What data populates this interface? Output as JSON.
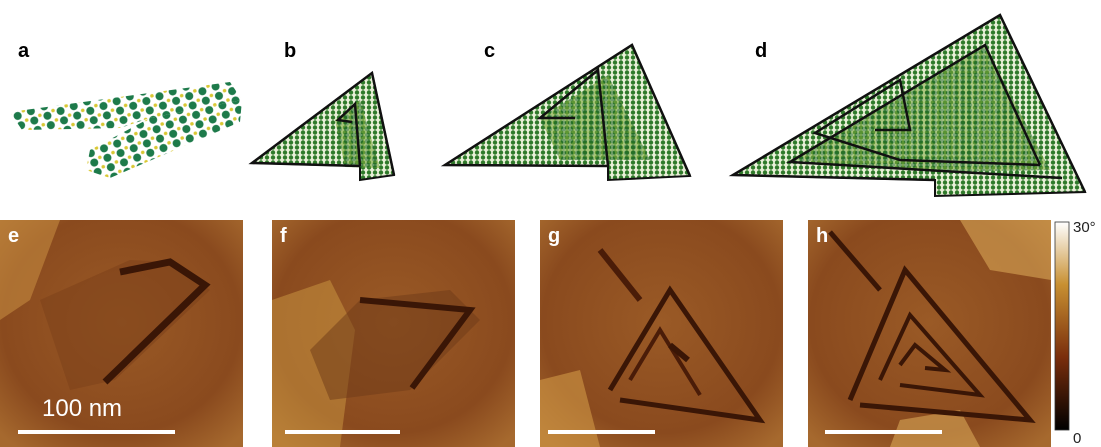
{
  "panels": {
    "top": [
      "a",
      "b",
      "c",
      "d"
    ],
    "bottom": [
      "e",
      "f",
      "g",
      "h"
    ]
  },
  "scale_bar": "100 nm",
  "colorbar": {
    "max_label": "30°",
    "min_label": "0"
  }
}
